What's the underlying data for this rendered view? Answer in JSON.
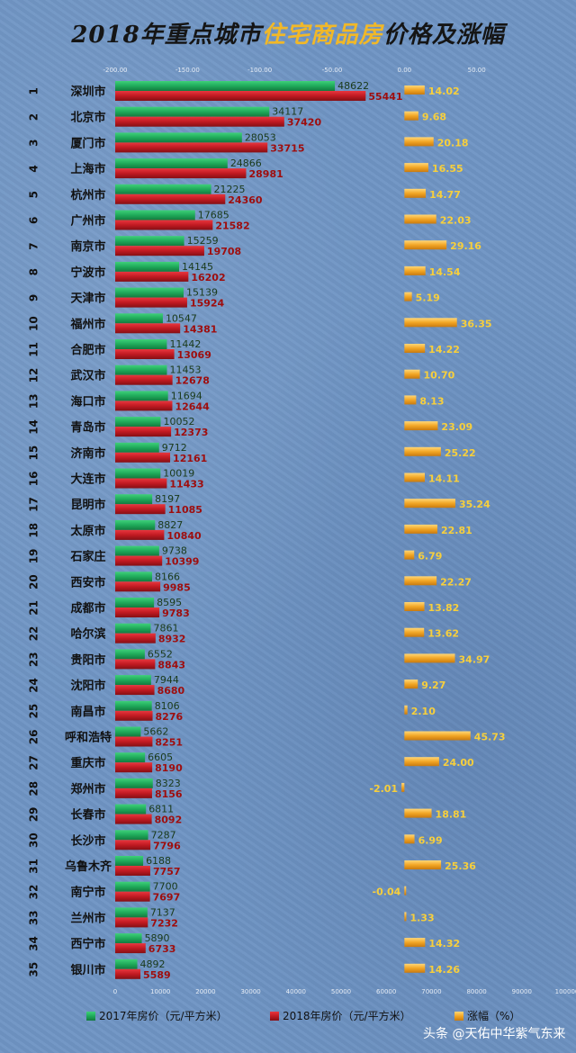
{
  "title": {
    "part1": "2018年重点城市",
    "part2": "住宅商品房",
    "part3": "价格及涨幅"
  },
  "watermark": "头条 @天佑中华紫气东来",
  "colors": {
    "bar2017": "#1faa5a",
    "bar2018": "#c11a22",
    "growth": "#f2a625",
    "label2017": "#1a3a1a",
    "label2018": "#9e0d0d",
    "growthLabel": "#f7cf3c"
  },
  "chart_data": {
    "type": "bar",
    "orientation": "horizontal",
    "categories": [
      "深圳市",
      "北京市",
      "厦门市",
      "上海市",
      "杭州市",
      "广州市",
      "南京市",
      "宁波市",
      "天津市",
      "福州市",
      "合肥市",
      "武汉市",
      "海口市",
      "青岛市",
      "济南市",
      "大连市",
      "昆明市",
      "太原市",
      "石家庄",
      "西安市",
      "成都市",
      "哈尔滨",
      "贵阳市",
      "沈阳市",
      "南昌市",
      "呼和浩特",
      "重庆市",
      "郑州市",
      "长春市",
      "长沙市",
      "乌鲁木齐",
      "南宁市",
      "兰州市",
      "西宁市",
      "银川市"
    ],
    "ranks": [
      "1",
      "2",
      "3",
      "4",
      "5",
      "6",
      "7",
      "8",
      "9",
      "10",
      "11",
      "12",
      "13",
      "14",
      "15",
      "16",
      "17",
      "18",
      "19",
      "20",
      "21",
      "22",
      "23",
      "24",
      "25",
      "26",
      "27",
      "28",
      "29",
      "30",
      "31",
      "32",
      "33",
      "34",
      "35"
    ],
    "series": [
      {
        "name": "2017年房价（元/平方米）",
        "values": [
          48622,
          34117,
          28053,
          24866,
          21225,
          17685,
          15259,
          14145,
          15139,
          10547,
          11442,
          11453,
          11694,
          10052,
          9712,
          10019,
          8197,
          8827,
          9738,
          8166,
          8595,
          7861,
          6552,
          7944,
          8106,
          5662,
          6605,
          8323,
          6811,
          7287,
          6188,
          7700,
          7137,
          5890,
          4892
        ]
      },
      {
        "name": "2018年房价（元/平方米）",
        "values": [
          55441,
          37420,
          33715,
          28981,
          24360,
          21582,
          19708,
          16202,
          15924,
          14381,
          13069,
          12678,
          12644,
          12373,
          12161,
          11433,
          11085,
          10840,
          10399,
          9985,
          9783,
          8932,
          8843,
          8680,
          8276,
          8251,
          8190,
          8156,
          8092,
          7796,
          7757,
          7697,
          7232,
          6733,
          5589
        ]
      },
      {
        "name": "涨幅（%）",
        "values": [
          14.02,
          9.68,
          20.18,
          16.55,
          14.77,
          22.03,
          29.16,
          14.54,
          5.19,
          36.35,
          14.22,
          10.7,
          8.13,
          23.09,
          25.22,
          14.11,
          35.24,
          22.81,
          6.79,
          22.27,
          13.82,
          13.62,
          34.97,
          9.27,
          2.1,
          45.73,
          24.0,
          -2.01,
          18.81,
          6.99,
          25.36,
          -0.04,
          1.33,
          14.32,
          14.26
        ]
      }
    ],
    "growth_labels": [
      "14.02",
      "9.68",
      "20.18",
      "16.55",
      "14.77",
      "22.03",
      "29.16",
      "14.54",
      "5.19",
      "36.35",
      "14.22",
      "10.70",
      "8.13",
      "23.09",
      "25.22",
      "14.11",
      "35.24",
      "22.81",
      "6.79",
      "22.27",
      "13.82",
      "13.62",
      "34.97",
      "9.27",
      "2.10",
      "45.73",
      "24.00",
      "-2.01",
      "18.81",
      "6.99",
      "25.36",
      "-0.04",
      "1.33",
      "14.32",
      "14.26"
    ],
    "x_axis_bottom": {
      "range": [
        0,
        100000
      ],
      "ticks": [
        "0",
        "10000",
        "20000",
        "30000",
        "40000",
        "50000",
        "60000",
        "70000",
        "80000",
        "90000",
        "100000"
      ]
    },
    "x_axis_top": {
      "range": [
        -200,
        100
      ],
      "ticks": [
        "-200.00",
        "-150.00",
        "-100.00",
        "-50.00",
        "0.00",
        "50.00"
      ]
    },
    "legend_position": "bottom"
  }
}
